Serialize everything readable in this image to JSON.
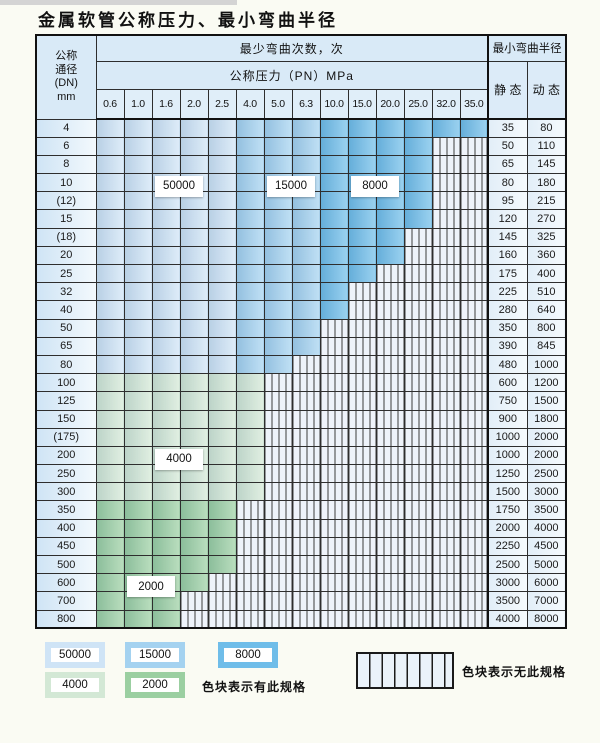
{
  "title": "金属软管公称压力、最小弯曲半径",
  "table": {
    "header": {
      "dn_lines": [
        "公称",
        "通径",
        "(DN)",
        "mm"
      ],
      "bend_times": "最少弯曲次数，次",
      "pressure": "公称压力（PN）MPa",
      "pressures": [
        "0.6",
        "1.0",
        "1.6",
        "2.0",
        "2.5",
        "4.0",
        "5.0",
        "6.3",
        "10.0",
        "15.0",
        "20.0",
        "25.0",
        "32.0",
        "35.0"
      ],
      "radius": "最小弯曲半径",
      "static_label": "静 态",
      "dynamic_label": "动 态"
    },
    "blue_zones": [
      {
        "cols": [
          0,
          4
        ],
        "bend_times": "50000"
      },
      {
        "cols": [
          5,
          7
        ],
        "bend_times": "15000"
      },
      {
        "cols": [
          8,
          13
        ],
        "bend_times": "8000"
      }
    ],
    "rows": [
      {
        "dn": "4",
        "static": "35",
        "dynamic": "80",
        "colored": 14,
        "palette": "blue"
      },
      {
        "dn": "6",
        "static": "50",
        "dynamic": "110",
        "colored": 12,
        "palette": "blue"
      },
      {
        "dn": "8",
        "static": "65",
        "dynamic": "145",
        "colored": 12,
        "palette": "blue"
      },
      {
        "dn": "10",
        "static": "80",
        "dynamic": "180",
        "colored": 12,
        "palette": "blue"
      },
      {
        "dn": "(12)",
        "static": "95",
        "dynamic": "215",
        "colored": 12,
        "palette": "blue"
      },
      {
        "dn": "15",
        "static": "120",
        "dynamic": "270",
        "colored": 12,
        "palette": "blue"
      },
      {
        "dn": "(18)",
        "static": "145",
        "dynamic": "325",
        "colored": 11,
        "palette": "blue"
      },
      {
        "dn": "20",
        "static": "160",
        "dynamic": "360",
        "colored": 11,
        "palette": "blue"
      },
      {
        "dn": "25",
        "static": "175",
        "dynamic": "400",
        "colored": 10,
        "palette": "blue"
      },
      {
        "dn": "32",
        "static": "225",
        "dynamic": "510",
        "colored": 9,
        "palette": "blue"
      },
      {
        "dn": "40",
        "static": "280",
        "dynamic": "640",
        "colored": 9,
        "palette": "blue"
      },
      {
        "dn": "50",
        "static": "350",
        "dynamic": "800",
        "colored": 8,
        "palette": "blue"
      },
      {
        "dn": "65",
        "static": "390",
        "dynamic": "845",
        "colored": 8,
        "palette": "blue"
      },
      {
        "dn": "80",
        "static": "480",
        "dynamic": "1000",
        "colored": 7,
        "palette": "blue"
      },
      {
        "dn": "100",
        "static": "600",
        "dynamic": "1200",
        "colored": 6,
        "palette": "green4000"
      },
      {
        "dn": "125",
        "static": "750",
        "dynamic": "1500",
        "colored": 6,
        "palette": "green4000"
      },
      {
        "dn": "150",
        "static": "900",
        "dynamic": "1800",
        "colored": 6,
        "palette": "green4000"
      },
      {
        "dn": "(175)",
        "static": "1000",
        "dynamic": "2000",
        "colored": 6,
        "palette": "green4000"
      },
      {
        "dn": "200",
        "static": "1000",
        "dynamic": "2000",
        "colored": 6,
        "palette": "green4000"
      },
      {
        "dn": "250",
        "static": "1250",
        "dynamic": "2500",
        "colored": 6,
        "palette": "green4000"
      },
      {
        "dn": "300",
        "static": "1500",
        "dynamic": "3000",
        "colored": 6,
        "palette": "green4000"
      },
      {
        "dn": "350",
        "static": "1750",
        "dynamic": "3500",
        "colored": 5,
        "palette": "green2000"
      },
      {
        "dn": "400",
        "static": "2000",
        "dynamic": "4000",
        "colored": 5,
        "palette": "green2000"
      },
      {
        "dn": "450",
        "static": "2250",
        "dynamic": "4500",
        "colored": 5,
        "palette": "green2000"
      },
      {
        "dn": "500",
        "static": "2500",
        "dynamic": "5000",
        "colored": 5,
        "palette": "green2000"
      },
      {
        "dn": "600",
        "static": "3000",
        "dynamic": "6000",
        "colored": 4,
        "palette": "green2000"
      },
      {
        "dn": "700",
        "static": "3500",
        "dynamic": "7000",
        "colored": 3,
        "palette": "green2000"
      },
      {
        "dn": "800",
        "static": "4000",
        "dynamic": "8000",
        "colored": 3,
        "palette": "green2000"
      }
    ],
    "overlay_labels": [
      {
        "text": "50000",
        "row": 3,
        "col_start": 2,
        "col_end": 3
      },
      {
        "text": "15000",
        "row": 3,
        "col_start": 6,
        "col_end": 7
      },
      {
        "text": "8000",
        "row": 3,
        "col_start": 9,
        "col_end": 10
      },
      {
        "text": "4000",
        "row": 18,
        "col_start": 2,
        "col_end": 3
      },
      {
        "text": "2000",
        "row": 25,
        "col_start": 1,
        "col_end": 2
      }
    ]
  },
  "colors": {
    "blue_50000": "#cfe4f6",
    "blue_15000": "#a4d2f0",
    "blue_8000": "#6fbde9",
    "green_4000": "#d3e8d5",
    "green_2000": "#9bcfa1",
    "unavailable_bg": "#eef3fa"
  },
  "legend": {
    "swatches": [
      {
        "label": "50000",
        "color_key": "blue_50000"
      },
      {
        "label": "15000",
        "color_key": "blue_15000"
      },
      {
        "label": "8000",
        "color_key": "blue_8000"
      },
      {
        "label": "4000",
        "color_key": "green_4000"
      },
      {
        "label": "2000",
        "color_key": "green_2000"
      }
    ],
    "has_spec_note": "色块表示有此规格",
    "no_spec_note": "色块表示无此规格"
  }
}
